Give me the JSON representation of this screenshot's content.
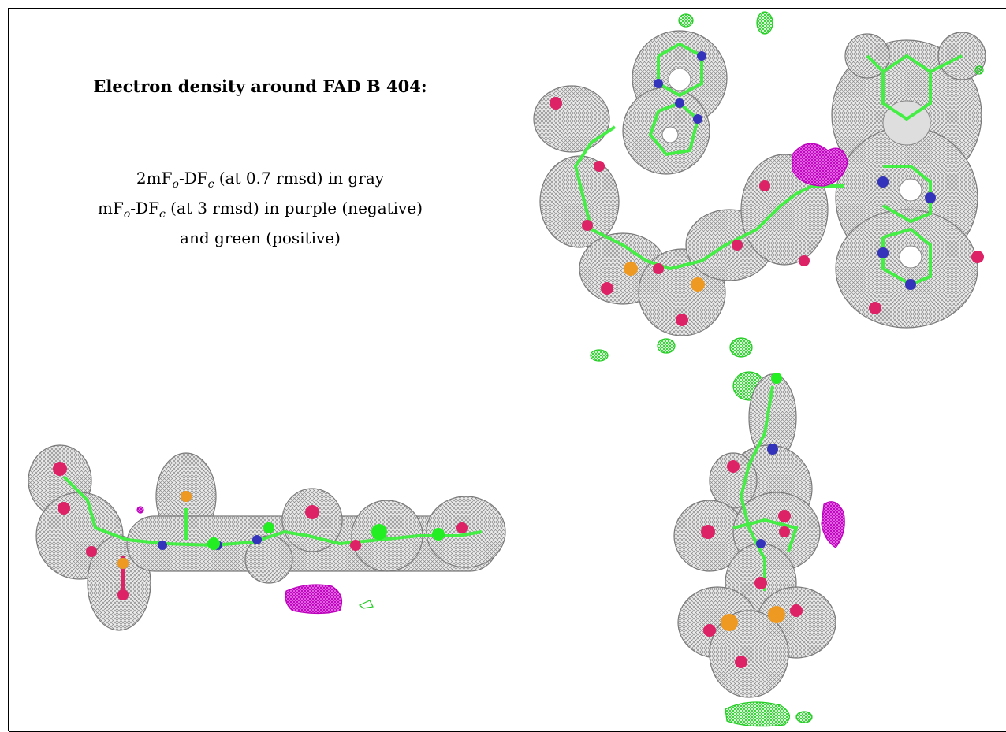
{
  "caption": {
    "title": "Electron density around FAD B 404:",
    "line1": {
      "a": "2mF",
      "a_sub": "o",
      "b": "-DF",
      "b_sub": "c",
      "c": " (at 0.7 rmsd) in gray"
    },
    "line2": {
      "a": "mF",
      "a_sub": "o",
      "b": "-DF",
      "b_sub": "c",
      "c": " (at 3 rmsd) in purple (negative)"
    },
    "line3": "and green (positive)"
  },
  "colors": {
    "grid_line": "#000000",
    "density_2fofc": "#9a9a9a",
    "positive": "#22cc22",
    "negative": "#cc11cc",
    "carbon": "#44ee44",
    "nitrogen": "#3333bb",
    "oxygen": "#dd2266",
    "phosphorus": "#ee9922"
  },
  "panels": [
    {
      "view": "top"
    },
    {
      "view": "side"
    },
    {
      "view": "end-on"
    }
  ]
}
